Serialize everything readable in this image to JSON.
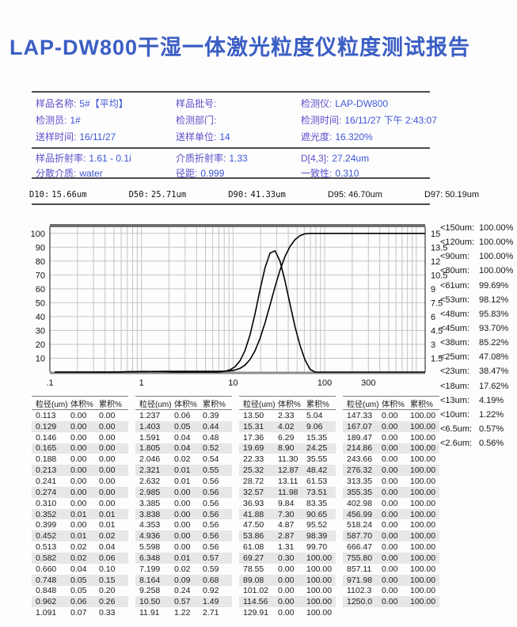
{
  "title": "LAP-DW800干湿一体激光粒度仪粒度测试报告",
  "colors": {
    "title": "#3b5ec4",
    "label": "#5a50cb",
    "value": "#3c55d8",
    "rule": "#4b4b4b",
    "row_shade": "#e7e7e7",
    "curve": "#000000",
    "grid": "#c4c4c4"
  },
  "info": {
    "sections": [
      {
        "rows": [
          [
            {
              "label": "样品名称:",
              "value": "5#【平均】"
            },
            {
              "label": "样品批号:",
              "value": ""
            },
            {
              "label": "检测仪:",
              "value": "LAP-DW800"
            }
          ],
          [
            {
              "label": "检测员:",
              "value": "1#"
            },
            {
              "label": "检测部门:",
              "value": ""
            },
            {
              "label": "检测时间:",
              "value": "16/11/27 下午 2:43:07"
            }
          ],
          [
            {
              "label": "送样时间:",
              "value": "16/11/27"
            },
            {
              "label": "送样单位:",
              "value": "14"
            },
            {
              "label": "遮光度:",
              "value": "16.320%"
            }
          ]
        ]
      },
      {
        "rows": [
          [
            {
              "label": "样品折射率:",
              "value": "1.61 - 0.1i"
            },
            {
              "label": "介质折射率:",
              "value": "1.33"
            },
            {
              "label": "D[4,3]:",
              "value": "27.24um"
            }
          ],
          [
            {
              "label": "分散介质:",
              "value": "water"
            },
            {
              "label": "径距:",
              "value": "0.999"
            },
            {
              "label": "一致性:",
              "value": "0.310"
            }
          ]
        ]
      }
    ]
  },
  "d_values": [
    {
      "label": "D10:",
      "value": "15.66um",
      "mono": true
    },
    {
      "label": "D50:",
      "value": "25.71um",
      "mono": true
    },
    {
      "label": "D90:",
      "value": "41.33um",
      "mono": true
    },
    {
      "label": "D95:",
      "value": "46.70um",
      "mono": false
    },
    {
      "label": "D97:",
      "value": "50.19um",
      "mono": false
    }
  ],
  "percentiles": [
    {
      "label": "<150um:",
      "value": "100.00%"
    },
    {
      "label": "<120um:",
      "value": "100.00%"
    },
    {
      "label": "<90um:",
      "value": "100.00%"
    },
    {
      "label": "<80um:",
      "value": "100.00%"
    },
    {
      "label": "<61um:",
      "value": "99.69%"
    },
    {
      "label": "<53um:",
      "value": "98.12%"
    },
    {
      "label": "<48um:",
      "value": "95.83%"
    },
    {
      "label": "<45um:",
      "value": "93.70%"
    },
    {
      "label": "<38um:",
      "value": "85.22%"
    },
    {
      "label": "<25um:",
      "value": "47.08%"
    },
    {
      "label": "<23um:",
      "value": "38.47%"
    },
    {
      "label": "<18um:",
      "value": "17.62%"
    },
    {
      "label": "<13um:",
      "value": "4.19%"
    },
    {
      "label": "<10um:",
      "value": "1.22%"
    },
    {
      "label": "<6.5um:",
      "value": "0.57%"
    },
    {
      "label": "<2.6um:",
      "value": "0.56%"
    }
  ],
  "chart_data": {
    "type": "line",
    "title": "",
    "x_scale": "log",
    "xlim": [
      0.1,
      1250
    ],
    "x_ticks": [
      {
        "v": 0.1,
        "t": ".1"
      },
      {
        "v": 1,
        "t": "1"
      },
      {
        "v": 10,
        "t": "10"
      },
      {
        "v": 100,
        "t": "100"
      },
      {
        "v": 300,
        "t": "300"
      }
    ],
    "left_axis": {
      "label": "累积%",
      "ticks": [
        10,
        20,
        30,
        40,
        50,
        60,
        70,
        80,
        90,
        100
      ],
      "max": 105
    },
    "right_axis": {
      "label": "体积%",
      "ticks": [
        1.5,
        3,
        4.5,
        6,
        7.5,
        9,
        10.5,
        12,
        13.5,
        15
      ],
      "max_equals_left_100": 15
    },
    "grid": true,
    "x": [
      0.113,
      0.129,
      0.146,
      0.165,
      0.188,
      0.213,
      0.241,
      0.274,
      0.31,
      0.352,
      0.399,
      0.452,
      0.513,
      0.582,
      0.66,
      0.748,
      0.848,
      0.962,
      1.091,
      1.237,
      1.403,
      1.591,
      1.805,
      2.046,
      2.321,
      2.632,
      2.985,
      3.385,
      3.838,
      4.353,
      4.936,
      5.598,
      6.348,
      7.199,
      8.164,
      9.258,
      10.5,
      11.91,
      13.5,
      15.31,
      17.36,
      19.69,
      22.33,
      25.32,
      28.72,
      32.57,
      36.93,
      41.88,
      47.5,
      53.86,
      61.08,
      69.27,
      78.55,
      89.08,
      101.02,
      114.56,
      129.91,
      147.33,
      167.07,
      189.47,
      214.86,
      243.66,
      276.32,
      313.35,
      355.35,
      402.98,
      456.99,
      518.24,
      587.7,
      666.47,
      755.8,
      857.11,
      971.98,
      1102.3,
      1250.0
    ],
    "series": [
      {
        "name": "cumulative_percent",
        "axis": "left",
        "values": [
          0,
          0,
          0,
          0,
          0,
          0,
          0,
          0,
          0,
          0.01,
          0.01,
          0.02,
          0.04,
          0.06,
          0.1,
          0.15,
          0.2,
          0.26,
          0.33,
          0.39,
          0.44,
          0.48,
          0.52,
          0.54,
          0.55,
          0.56,
          0.56,
          0.56,
          0.56,
          0.56,
          0.56,
          0.56,
          0.57,
          0.59,
          0.68,
          0.92,
          1.49,
          2.71,
          5.04,
          9.06,
          15.35,
          24.25,
          35.55,
          48.42,
          61.53,
          73.51,
          83.35,
          90.65,
          95.52,
          98.39,
          99.7,
          100,
          100,
          100,
          100,
          100,
          100,
          100,
          100,
          100,
          100,
          100,
          100,
          100,
          100,
          100,
          100,
          100,
          100,
          100,
          100,
          100,
          100,
          100,
          100
        ]
      },
      {
        "name": "volume_percent",
        "axis": "right",
        "values": [
          0,
          0,
          0,
          0,
          0,
          0,
          0,
          0,
          0,
          0.01,
          0,
          0.01,
          0.02,
          0.02,
          0.04,
          0.05,
          0.05,
          0.06,
          0.07,
          0.06,
          0.05,
          0.04,
          0.04,
          0.02,
          0.01,
          0.01,
          0,
          0,
          0,
          0,
          0,
          0,
          0.01,
          0.02,
          0.09,
          0.24,
          0.57,
          1.22,
          2.33,
          4.02,
          6.29,
          8.9,
          11.3,
          12.87,
          13.11,
          11.98,
          9.84,
          7.3,
          4.87,
          2.87,
          1.31,
          0.3,
          0,
          0,
          0,
          0,
          0,
          0,
          0,
          0,
          0,
          0,
          0,
          0,
          0,
          0,
          0,
          0,
          0,
          0,
          0,
          0,
          0,
          0,
          0
        ]
      }
    ]
  },
  "table": {
    "headers": [
      "粒径(um)",
      "体积%",
      "累积%"
    ],
    "groups": [
      [
        [
          "0.113",
          "0.00",
          "0.00"
        ],
        [
          "0.129",
          "0.00",
          "0.00"
        ],
        [
          "0.146",
          "0.00",
          "0.00"
        ],
        [
          "0.165",
          "0.00",
          "0.00"
        ],
        [
          "0.188",
          "0.00",
          "0.00"
        ],
        [
          "0.213",
          "0.00",
          "0.00"
        ],
        [
          "0.241",
          "0.00",
          "0.00"
        ],
        [
          "0.274",
          "0.00",
          "0.00"
        ],
        [
          "0.310",
          "0.00",
          "0.00"
        ],
        [
          "0.352",
          "0.01",
          "0.01"
        ],
        [
          "0.399",
          "0.00",
          "0.01"
        ],
        [
          "0.452",
          "0.01",
          "0.02"
        ],
        [
          "0.513",
          "0.02",
          "0.04"
        ],
        [
          "0.582",
          "0.02",
          "0.06"
        ],
        [
          "0.660",
          "0.04",
          "0.10"
        ],
        [
          "0.748",
          "0.05",
          "0.15"
        ],
        [
          "0.848",
          "0.05",
          "0.20"
        ],
        [
          "0.962",
          "0.06",
          "0.26"
        ],
        [
          "1.091",
          "0.07",
          "0.33"
        ]
      ],
      [
        [
          "1.237",
          "0.06",
          "0.39"
        ],
        [
          "1.403",
          "0.05",
          "0.44"
        ],
        [
          "1.591",
          "0.04",
          "0.48"
        ],
        [
          "1.805",
          "0.04",
          "0.52"
        ],
        [
          "2.046",
          "0.02",
          "0.54"
        ],
        [
          "2.321",
          "0.01",
          "0.55"
        ],
        [
          "2.632",
          "0.01",
          "0.56"
        ],
        [
          "2.985",
          "0.00",
          "0.56"
        ],
        [
          "3.385",
          "0.00",
          "0.56"
        ],
        [
          "3.838",
          "0.00",
          "0.56"
        ],
        [
          "4.353",
          "0.00",
          "0.56"
        ],
        [
          "4.936",
          "0.00",
          "0.56"
        ],
        [
          "5.598",
          "0.00",
          "0.56"
        ],
        [
          "6.348",
          "0.01",
          "0.57"
        ],
        [
          "7.199",
          "0.02",
          "0.59"
        ],
        [
          "8.164",
          "0.09",
          "0.68"
        ],
        [
          "9.258",
          "0.24",
          "0.92"
        ],
        [
          "10.50",
          "0.57",
          "1.49"
        ],
        [
          "11.91",
          "1.22",
          "2.71"
        ]
      ],
      [
        [
          "13.50",
          "2.33",
          "5.04"
        ],
        [
          "15.31",
          "4.02",
          "9.06"
        ],
        [
          "17.36",
          "6.29",
          "15.35"
        ],
        [
          "19.69",
          "8.90",
          "24.25"
        ],
        [
          "22.33",
          "11.30",
          "35.55"
        ],
        [
          "25.32",
          "12.87",
          "48.42"
        ],
        [
          "28.72",
          "13.11",
          "61.53"
        ],
        [
          "32.57",
          "11.98",
          "73.51"
        ],
        [
          "36.93",
          "9.84",
          "83.35"
        ],
        [
          "41.88",
          "7.30",
          "90.65"
        ],
        [
          "47.50",
          "4.87",
          "95.52"
        ],
        [
          "53.86",
          "2.87",
          "98.39"
        ],
        [
          "61.08",
          "1.31",
          "99.70"
        ],
        [
          "69.27",
          "0.30",
          "100.00"
        ],
        [
          "78.55",
          "0.00",
          "100.00"
        ],
        [
          "89.08",
          "0.00",
          "100.00"
        ],
        [
          "101.02",
          "0.00",
          "100.00"
        ],
        [
          "114.56",
          "0.00",
          "100.00"
        ],
        [
          "129.91",
          "0.00",
          "100.00"
        ]
      ],
      [
        [
          "147.33",
          "0.00",
          "100.00"
        ],
        [
          "167.07",
          "0.00",
          "100.00"
        ],
        [
          "189.47",
          "0.00",
          "100.00"
        ],
        [
          "214.86",
          "0.00",
          "100.00"
        ],
        [
          "243.66",
          "0.00",
          "100.00"
        ],
        [
          "276.32",
          "0.00",
          "100.00"
        ],
        [
          "313.35",
          "0.00",
          "100.00"
        ],
        [
          "355.35",
          "0.00",
          "100.00"
        ],
        [
          "402.98",
          "0.00",
          "100.00"
        ],
        [
          "456.99",
          "0.00",
          "100.00"
        ],
        [
          "518.24",
          "0.00",
          "100.00"
        ],
        [
          "587.70",
          "0.00",
          "100.00"
        ],
        [
          "666.47",
          "0.00",
          "100.00"
        ],
        [
          "755.80",
          "0.00",
          "100.00"
        ],
        [
          "857.11",
          "0.00",
          "100.00"
        ],
        [
          "971.98",
          "0.00",
          "100.00"
        ],
        [
          "1102.3",
          "0.00",
          "100.00"
        ],
        [
          "1250.0",
          "0.00",
          "100.00"
        ]
      ]
    ]
  }
}
